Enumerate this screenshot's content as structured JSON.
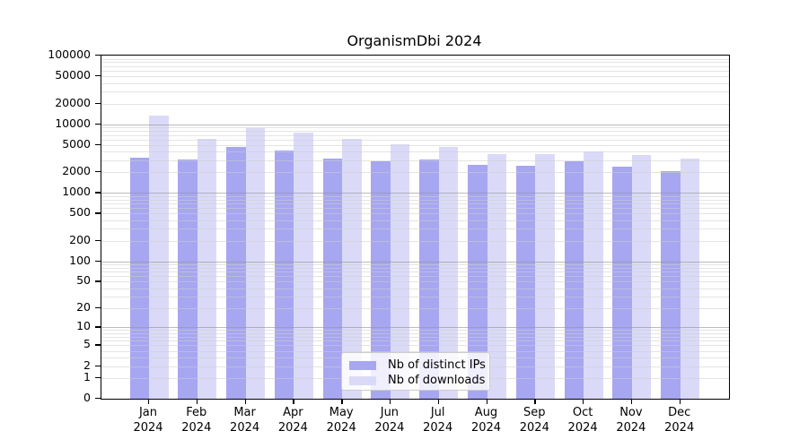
{
  "title": "OrganismDbi 2024",
  "chart_data": {
    "type": "bar",
    "title": "OrganismDbi 2024",
    "yscale": "log10(value+1)",
    "ylim": [
      0,
      100000
    ],
    "yticks": [
      0,
      1,
      2,
      5,
      10,
      20,
      50,
      100,
      200,
      500,
      1000,
      2000,
      5000,
      10000,
      20000,
      50000,
      100000
    ],
    "grid": true,
    "legend_position": "bottom-center",
    "year": "2024",
    "months": [
      "Jan",
      "Feb",
      "Mar",
      "Apr",
      "May",
      "Jun",
      "Jul",
      "Aug",
      "Sep",
      "Oct",
      "Nov",
      "Dec"
    ],
    "categories": [
      "Jan 2024",
      "Feb 2024",
      "Mar 2024",
      "Apr 2024",
      "May 2024",
      "Jun 2024",
      "Jul 2024",
      "Aug 2024",
      "Sep 2024",
      "Oct 2024",
      "Nov 2024",
      "Dec 2024"
    ],
    "series": [
      {
        "name": "Nb of distinct IPs",
        "key": "distinct-ips",
        "color": "#a6a6f1",
        "values": [
          3300,
          3100,
          4600,
          4150,
          3200,
          2900,
          3100,
          2580,
          2500,
          2850,
          2400,
          2050
        ]
      },
      {
        "name": "Nb of downloads",
        "key": "downloads",
        "color": "#dadaf8",
        "values": [
          13200,
          6100,
          8800,
          7600,
          6100,
          5150,
          4700,
          3650,
          3650,
          4000,
          3600,
          3150
        ]
      }
    ],
    "colors": {
      "grid_major": "#969696",
      "grid_minor": "#cdcdcd",
      "spine": "#000000",
      "background": "#ffffff"
    }
  }
}
